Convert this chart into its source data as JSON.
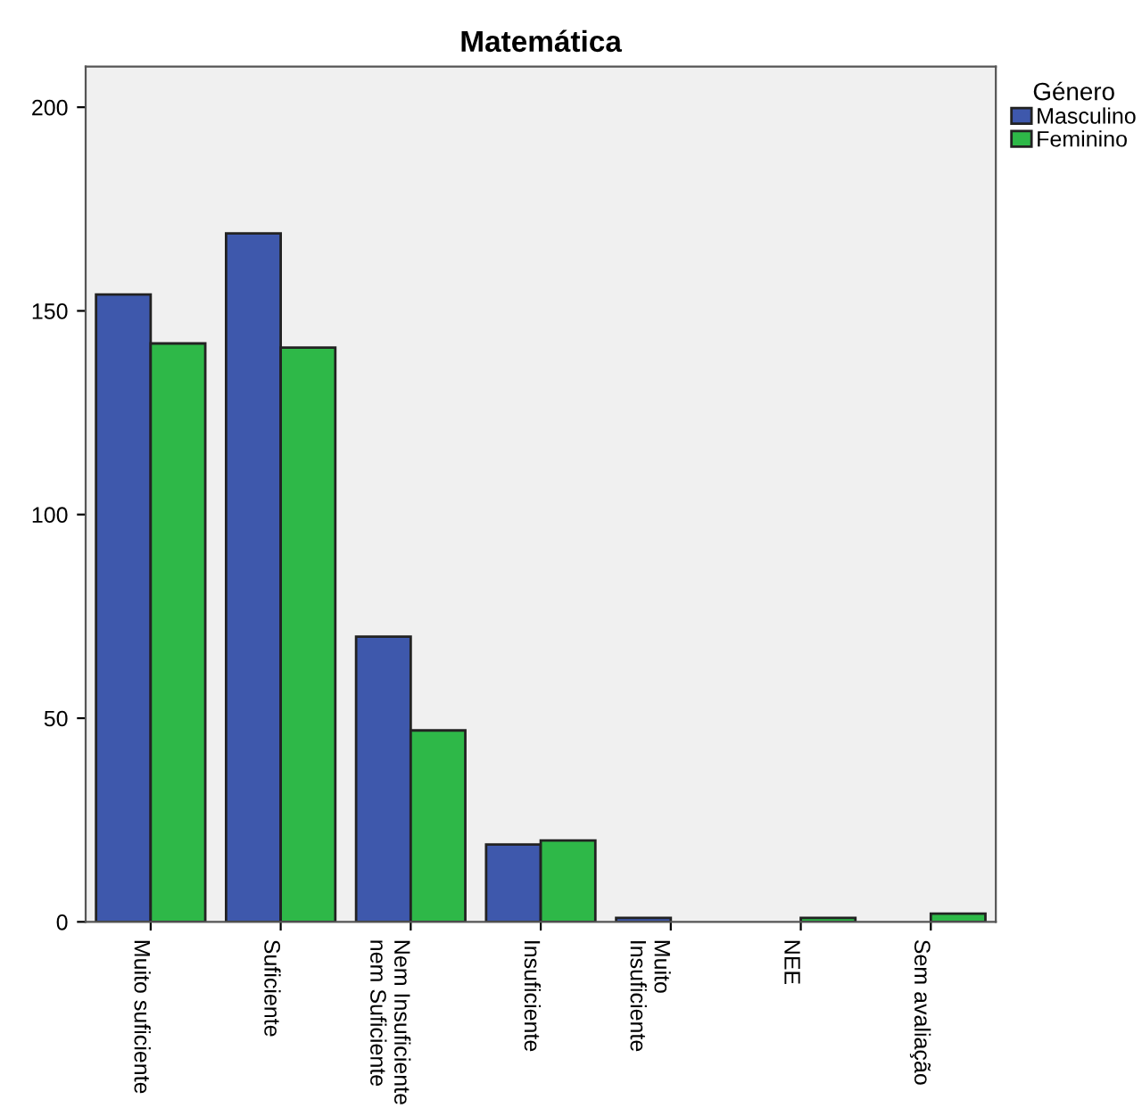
{
  "chart_data": {
    "type": "bar",
    "title": "Matemática",
    "categories": [
      "Muito suficiente",
      "Suficiente",
      "Nem Insuficiente\nnem Suficiente",
      "Insuficiente",
      "Muito\nInsuficiente",
      "NEE",
      "Sem avaliação"
    ],
    "series": [
      {
        "name": "Masculino",
        "color": "#3e58ac",
        "values": [
          154,
          169,
          70,
          19,
          1,
          null,
          null
        ]
      },
      {
        "name": "Feminino",
        "color": "#2eb848",
        "values": [
          142,
          141,
          47,
          20,
          null,
          1,
          2
        ]
      }
    ],
    "legend_title": "Género",
    "legend": "top right",
    "ylim": [
      0,
      210
    ],
    "yticks": [
      0,
      50,
      100,
      150,
      200
    ],
    "grid": false
  }
}
